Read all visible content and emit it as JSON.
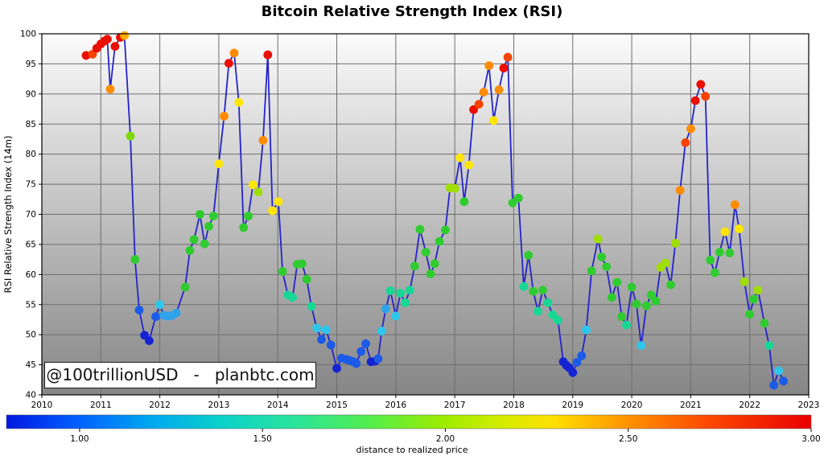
{
  "title": "Bitcoin Relative Strength Index (RSI)",
  "watermark": {
    "text": "@100trillionUSD   -   planbtc.com"
  },
  "y_axis": {
    "label": "RSI Relative Strength Index (14m)",
    "min": 40,
    "max": 100,
    "tick_step": 5,
    "tick_labels": [
      "40",
      "45",
      "50",
      "55",
      "60",
      "65",
      "70",
      "75",
      "80",
      "85",
      "90",
      "95",
      "100"
    ]
  },
  "x_axis": {
    "min": 2010,
    "max": 2023,
    "tick_labels": [
      "2010",
      "2011",
      "2012",
      "2013",
      "2014",
      "2015",
      "2016",
      "2017",
      "2018",
      "2019",
      "2020",
      "2021",
      "2022",
      "2023"
    ]
  },
  "colorbar": {
    "label": "distance to realized price",
    "range": [
      0.8,
      3.0
    ],
    "tick_values": [
      1.0,
      1.5,
      2.0,
      2.5,
      3.0
    ],
    "tick_labels": [
      "1.00",
      "1.50",
      "2.00",
      "2.50",
      "3.00"
    ],
    "gradient": [
      {
        "o": 0.0,
        "c": "#0018E2"
      },
      {
        "o": 0.09,
        "c": "#0061FE"
      },
      {
        "o": 0.18,
        "c": "#00A8F0"
      },
      {
        "o": 0.27,
        "c": "#0BD2C8"
      },
      {
        "o": 0.36,
        "c": "#2BE49A"
      },
      {
        "o": 0.45,
        "c": "#52EE4E"
      },
      {
        "o": 0.54,
        "c": "#9BEC00"
      },
      {
        "o": 0.62,
        "c": "#D8EC00"
      },
      {
        "o": 0.68,
        "c": "#FFE000"
      },
      {
        "o": 0.77,
        "c": "#FF9400"
      },
      {
        "o": 0.87,
        "c": "#FC4A00"
      },
      {
        "o": 1.0,
        "c": "#E90000"
      }
    ]
  },
  "style": {
    "line_color": "#2323C8",
    "spine_color": "#000000",
    "grid_color": "#6E6E6E",
    "plot_bg_top": "#FBFBFB",
    "plot_bg_bottom": "#868686",
    "dot_radius": 5.4
  },
  "palette": {
    "red": "#EA0F00",
    "orangered": "#F64300",
    "orange": "#FF8C00",
    "amber": "#FFAE00",
    "yellow": "#FFE600",
    "yellowgreen": "#9FDE00",
    "limegreen": "#7CD900",
    "green": "#2FCC2F",
    "springgreen": "#17D795",
    "cyan": "#2EC6EC",
    "skyblue": "#2FA3EA",
    "blue": "#1C5BE8",
    "navy": "#1523D2"
  },
  "chart_data": {
    "type": "line",
    "subtype": "scatter-line-colormapped",
    "title": "Bitcoin Relative Strength Index (RSI)",
    "ylabel": "RSI Relative Strength Index (14m)",
    "xlim": [
      2010,
      2023
    ],
    "ylim": [
      40,
      100
    ],
    "grid": true,
    "color_meaning": "distance to realized price (jet colormap 0.8-3.0)",
    "point_fields": [
      "year_decimal",
      "rsi",
      "color_key"
    ],
    "points": [
      [
        2010.75,
        96.4,
        "red"
      ],
      [
        2010.86,
        96.6,
        "orangered"
      ],
      [
        2010.93,
        97.6,
        "red"
      ],
      [
        2011.0,
        98.3,
        "red"
      ],
      [
        2011.06,
        98.8,
        "red"
      ],
      [
        2011.11,
        99.1,
        "red"
      ],
      [
        2011.16,
        90.8,
        "orange"
      ],
      [
        2011.24,
        97.9,
        "red"
      ],
      [
        2011.33,
        99.4,
        "red"
      ],
      [
        2011.4,
        99.7,
        "amber"
      ],
      [
        2011.5,
        83.0,
        "limegreen"
      ],
      [
        2011.58,
        62.5,
        "green"
      ],
      [
        2011.65,
        54.1,
        "blue"
      ],
      [
        2011.74,
        49.9,
        "navy"
      ],
      [
        2011.82,
        49.0,
        "navy"
      ],
      [
        2011.93,
        53.0,
        "blue"
      ],
      [
        2012.0,
        55.0,
        "cyan"
      ],
      [
        2012.07,
        53.2,
        "skyblue"
      ],
      [
        2012.14,
        53.1,
        "skyblue"
      ],
      [
        2012.21,
        53.2,
        "skyblue"
      ],
      [
        2012.28,
        53.6,
        "skyblue"
      ],
      [
        2012.43,
        57.9,
        "green"
      ],
      [
        2012.51,
        64.0,
        "green"
      ],
      [
        2012.58,
        65.8,
        "green"
      ],
      [
        2012.68,
        70.0,
        "green"
      ],
      [
        2012.76,
        65.1,
        "green"
      ],
      [
        2012.83,
        68.0,
        "green"
      ],
      [
        2012.91,
        69.7,
        "green"
      ],
      [
        2013.0,
        78.4,
        "yellow"
      ],
      [
        2013.09,
        86.3,
        "orange"
      ],
      [
        2013.17,
        95.1,
        "red"
      ],
      [
        2013.26,
        96.8,
        "orange"
      ],
      [
        2013.34,
        88.6,
        "yellow"
      ],
      [
        2013.42,
        67.8,
        "green"
      ],
      [
        2013.5,
        69.7,
        "green"
      ],
      [
        2013.58,
        74.9,
        "yellow"
      ],
      [
        2013.67,
        73.7,
        "yellowgreen"
      ],
      [
        2013.75,
        82.3,
        "orange"
      ],
      [
        2013.83,
        96.5,
        "red"
      ],
      [
        2013.91,
        70.6,
        "yellow"
      ],
      [
        2014.01,
        72.1,
        "yellow"
      ],
      [
        2014.08,
        60.5,
        "green"
      ],
      [
        2014.17,
        56.6,
        "springgreen"
      ],
      [
        2014.25,
        56.2,
        "springgreen"
      ],
      [
        2014.33,
        61.7,
        "green"
      ],
      [
        2014.41,
        61.8,
        "green"
      ],
      [
        2014.49,
        59.2,
        "green"
      ],
      [
        2014.57,
        54.7,
        "springgreen"
      ],
      [
        2014.66,
        51.1,
        "cyan"
      ],
      [
        2014.74,
        49.2,
        "blue"
      ],
      [
        2014.82,
        50.8,
        "cyan"
      ],
      [
        2014.9,
        48.3,
        "blue"
      ],
      [
        2015.0,
        44.4,
        "navy"
      ],
      [
        2015.08,
        46.1,
        "blue"
      ],
      [
        2015.16,
        45.9,
        "blue"
      ],
      [
        2015.22,
        45.7,
        "blue"
      ],
      [
        2015.28,
        45.5,
        "blue"
      ],
      [
        2015.33,
        45.2,
        "blue"
      ],
      [
        2015.41,
        47.2,
        "blue"
      ],
      [
        2015.49,
        48.5,
        "blue"
      ],
      [
        2015.58,
        45.5,
        "navy"
      ],
      [
        2015.65,
        45.6,
        "navy"
      ],
      [
        2015.7,
        46.0,
        "blue"
      ],
      [
        2015.76,
        50.6,
        "cyan"
      ],
      [
        2015.83,
        54.3,
        "skyblue"
      ],
      [
        2015.91,
        57.3,
        "springgreen"
      ],
      [
        2016.0,
        53.1,
        "cyan"
      ],
      [
        2016.08,
        56.9,
        "springgreen"
      ],
      [
        2016.16,
        55.3,
        "springgreen"
      ],
      [
        2016.24,
        57.4,
        "springgreen"
      ],
      [
        2016.32,
        61.4,
        "green"
      ],
      [
        2016.41,
        67.5,
        "green"
      ],
      [
        2016.51,
        63.7,
        "green"
      ],
      [
        2016.59,
        60.1,
        "green"
      ],
      [
        2016.66,
        61.8,
        "green"
      ],
      [
        2016.74,
        65.5,
        "green"
      ],
      [
        2016.84,
        67.4,
        "green"
      ],
      [
        2016.92,
        74.4,
        "yellowgreen"
      ],
      [
        2017.0,
        74.3,
        "yellowgreen"
      ],
      [
        2017.09,
        79.4,
        "yellow"
      ],
      [
        2017.16,
        72.1,
        "green"
      ],
      [
        2017.24,
        78.2,
        "yellow"
      ],
      [
        2017.32,
        87.4,
        "red"
      ],
      [
        2017.41,
        88.3,
        "orangered"
      ],
      [
        2017.49,
        90.3,
        "orange"
      ],
      [
        2017.58,
        94.7,
        "orange"
      ],
      [
        2017.66,
        85.6,
        "yellow"
      ],
      [
        2017.75,
        90.7,
        "orange"
      ],
      [
        2017.83,
        94.3,
        "red"
      ],
      [
        2017.9,
        96.1,
        "orangered"
      ],
      [
        2017.98,
        71.9,
        "green"
      ],
      [
        2018.08,
        72.7,
        "green"
      ],
      [
        2018.17,
        58.0,
        "springgreen"
      ],
      [
        2018.25,
        63.2,
        "green"
      ],
      [
        2018.33,
        57.2,
        "green"
      ],
      [
        2018.41,
        53.9,
        "springgreen"
      ],
      [
        2018.49,
        57.4,
        "green"
      ],
      [
        2018.58,
        55.3,
        "springgreen"
      ],
      [
        2018.66,
        53.3,
        "springgreen"
      ],
      [
        2018.75,
        52.4,
        "springgreen"
      ],
      [
        2018.84,
        45.5,
        "navy"
      ],
      [
        2018.89,
        44.9,
        "navy"
      ],
      [
        2018.94,
        44.5,
        "navy"
      ],
      [
        2019.0,
        43.7,
        "navy"
      ],
      [
        2019.07,
        45.4,
        "blue"
      ],
      [
        2019.15,
        46.5,
        "blue"
      ],
      [
        2019.23,
        50.8,
        "cyan"
      ],
      [
        2019.32,
        60.6,
        "green"
      ],
      [
        2019.43,
        65.9,
        "yellowgreen"
      ],
      [
        2019.49,
        62.9,
        "green"
      ],
      [
        2019.57,
        61.3,
        "green"
      ],
      [
        2019.66,
        56.2,
        "green"
      ],
      [
        2019.75,
        58.7,
        "green"
      ],
      [
        2019.83,
        53.0,
        "green"
      ],
      [
        2019.91,
        51.6,
        "springgreen"
      ],
      [
        2020.0,
        57.9,
        "green"
      ],
      [
        2020.08,
        55.1,
        "green"
      ],
      [
        2020.16,
        48.2,
        "cyan"
      ],
      [
        2020.25,
        54.8,
        "green"
      ],
      [
        2020.33,
        56.6,
        "green"
      ],
      [
        2020.41,
        55.6,
        "green"
      ],
      [
        2020.49,
        61.2,
        "yellowgreen"
      ],
      [
        2020.57,
        61.9,
        "yellowgreen"
      ],
      [
        2020.66,
        58.3,
        "green"
      ],
      [
        2020.74,
        65.2,
        "yellowgreen"
      ],
      [
        2020.82,
        74.0,
        "orange"
      ],
      [
        2020.91,
        81.9,
        "orangered"
      ],
      [
        2021.0,
        84.2,
        "orange"
      ],
      [
        2021.08,
        88.9,
        "red"
      ],
      [
        2021.17,
        91.6,
        "red"
      ],
      [
        2021.25,
        89.6,
        "orangered"
      ],
      [
        2021.33,
        62.4,
        "green"
      ],
      [
        2021.41,
        60.3,
        "green"
      ],
      [
        2021.49,
        63.7,
        "green"
      ],
      [
        2021.58,
        67.1,
        "yellow"
      ],
      [
        2021.66,
        63.6,
        "green"
      ],
      [
        2021.75,
        71.6,
        "orange"
      ],
      [
        2021.82,
        67.6,
        "yellow"
      ],
      [
        2021.91,
        58.8,
        "yellowgreen"
      ],
      [
        2022.0,
        53.4,
        "green"
      ],
      [
        2022.07,
        55.9,
        "green"
      ],
      [
        2022.14,
        57.4,
        "yellowgreen"
      ],
      [
        2022.25,
        51.9,
        "green"
      ],
      [
        2022.33,
        48.2,
        "springgreen"
      ],
      [
        2022.41,
        41.6,
        "blue"
      ],
      [
        2022.49,
        44.0,
        "cyan"
      ],
      [
        2022.57,
        42.3,
        "blue"
      ]
    ]
  }
}
